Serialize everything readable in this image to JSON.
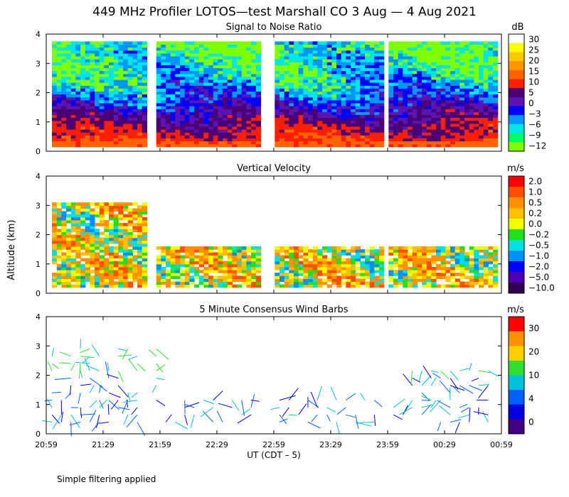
{
  "title": "449 MHz Profiler LOTOS—test Marshall CO  3 Aug —  4 Aug 2021",
  "footnote": "Simple filtering applied",
  "shared_ylabel": "Altitude (km)",
  "xlabel": "UT  (CDT – 5)",
  "x_ticks": [
    "20:59",
    "21:29",
    "21:59",
    "22:29",
    "22:59",
    "23:29",
    "23:59",
    "00:29",
    "00:59"
  ],
  "y_ticks": [
    "0",
    "1",
    "2",
    "3",
    "4"
  ],
  "data_gaps": [
    [
      "21:50",
      "21:55"
    ],
    [
      "22:52",
      "22:57"
    ],
    [
      "23:55",
      "23:59"
    ]
  ],
  "chart_data": [
    {
      "type": "heatmap",
      "title": "Signal to Noise Ratio",
      "colorbar_unit": "dB",
      "colorbar_labels": [
        "30",
        "25",
        "20",
        "15",
        "10",
        "5",
        "0",
        "−3",
        "−6",
        "−9",
        "−12"
      ],
      "colors": [
        "#ffffff",
        "#ffff00",
        "#ffc800",
        "#ff9600",
        "#ff6400",
        "#ff1e00",
        "#4b0073",
        "#5a14b4",
        "#0000ff",
        "#0096ff",
        "#00e6e6",
        "#00ff64",
        "#7dff00"
      ],
      "xlim": [
        "20:59",
        "00:59"
      ],
      "ylim": [
        0,
        4
      ],
      "profile_km": {
        "heights": [
          0.2,
          0.5,
          0.8,
          1.1,
          1.4,
          1.7,
          2.0,
          2.3,
          2.6,
          2.9,
          3.2,
          3.5,
          3.8
        ],
        "snr_db": [
          10,
          6,
          4,
          1,
          -2,
          -5,
          -7,
          -9,
          -10,
          -11,
          -11,
          -12,
          -12
        ]
      }
    },
    {
      "type": "heatmap",
      "title": "Vertical Velocity",
      "colorbar_unit": "m/s",
      "colorbar_labels": [
        "2.0",
        "1.0",
        "0.5",
        "0.2",
        "0.0",
        "−0.2",
        "−0.5",
        "−1.0",
        "−2.0",
        "−5.0",
        "−10.0"
      ],
      "colors": [
        "#ff0000",
        "#ff5000",
        "#ff9000",
        "#ffc000",
        "#f0ff00",
        "#20e020",
        "#00e0e0",
        "#0090ff",
        "#0000ff",
        "#5000b4",
        "#300050"
      ],
      "xlim": [
        "20:59",
        "00:59"
      ],
      "ylim": [
        0,
        4
      ]
    },
    {
      "type": "scatter",
      "title": "5 Minute Consensus Wind Barbs",
      "colorbar_unit": "m/s",
      "colorbar_labels": [
        "30",
        "20",
        "10",
        "4",
        "0"
      ],
      "colors": [
        "#ff0000",
        "#ff9000",
        "#ffd000",
        "#30e030",
        "#00c0e0",
        "#0060ff",
        "#0000e0",
        "#400080"
      ],
      "xlim": [
        "20:59",
        "00:59"
      ],
      "ylim": [
        0,
        4
      ]
    }
  ]
}
